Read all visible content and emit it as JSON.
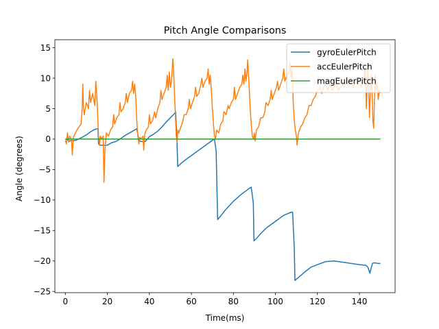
{
  "chart_data": {
    "type": "line",
    "title": "Pitch Angle Comparisons",
    "xlabel": "Time(ms)",
    "ylabel": "Angle (degrees)",
    "xlim": [
      -5,
      157
    ],
    "ylim": [
      -25.2,
      16.3
    ],
    "xticks": [
      0,
      20,
      40,
      60,
      80,
      100,
      120,
      140
    ],
    "yticks": [
      -25,
      -20,
      -15,
      -10,
      -5,
      0,
      5,
      10,
      15
    ],
    "grid": false,
    "legend_position": "upper right",
    "series": [
      {
        "name": "gyroEulerPitch",
        "color": "#1f77b4",
        "points": [
          [
            0,
            0.0
          ],
          [
            2,
            -0.3
          ],
          [
            5,
            -0.2
          ],
          [
            8,
            0.3
          ],
          [
            10,
            0.7
          ],
          [
            12,
            1.2
          ],
          [
            14,
            1.6
          ],
          [
            15.5,
            1.7
          ],
          [
            15.8,
            -0.8
          ],
          [
            16.5,
            -1.0
          ],
          [
            18,
            -1.0
          ],
          [
            20,
            -1.0
          ],
          [
            22,
            -0.6
          ],
          [
            24,
            -0.4
          ],
          [
            26,
            0.0
          ],
          [
            28,
            0.5
          ],
          [
            30,
            0.9
          ],
          [
            32,
            1.3
          ],
          [
            34,
            1.7
          ],
          [
            35,
            -0.2
          ],
          [
            36,
            -0.4
          ],
          [
            38,
            -0.4
          ],
          [
            40,
            0.4
          ],
          [
            42,
            0.8
          ],
          [
            44,
            1.3
          ],
          [
            46,
            2.0
          ],
          [
            48,
            2.8
          ],
          [
            50,
            3.5
          ],
          [
            52,
            4.2
          ],
          [
            52.5,
            4.5
          ],
          [
            53.2,
            -0.8
          ],
          [
            53.5,
            -4.5
          ],
          [
            55,
            -4.0
          ],
          [
            58,
            -3.2
          ],
          [
            62,
            -2.2
          ],
          [
            66,
            -1.2
          ],
          [
            70,
            -0.2
          ],
          [
            71,
            0.0
          ],
          [
            71.8,
            -2.0
          ],
          [
            72.5,
            -13.2
          ],
          [
            74,
            -12.6
          ],
          [
            76,
            -11.7
          ],
          [
            80,
            -10.2
          ],
          [
            84,
            -9.0
          ],
          [
            87.5,
            -8.1
          ],
          [
            88.5,
            -7.9
          ],
          [
            89.5,
            -10.5
          ],
          [
            89.8,
            -16.7
          ],
          [
            91,
            -16.3
          ],
          [
            93,
            -15.5
          ],
          [
            96,
            -14.5
          ],
          [
            100,
            -13.5
          ],
          [
            104,
            -12.5
          ],
          [
            107.5,
            -12.0
          ],
          [
            108.2,
            -12.0
          ],
          [
            109,
            -18.0
          ],
          [
            109.3,
            -23.2
          ],
          [
            111,
            -22.7
          ],
          [
            114,
            -21.8
          ],
          [
            117,
            -21.0
          ],
          [
            120,
            -20.6
          ],
          [
            124,
            -20.1
          ],
          [
            128,
            -20.0
          ],
          [
            132,
            -20.2
          ],
          [
            136,
            -20.4
          ],
          [
            140,
            -20.6
          ],
          [
            143,
            -20.7
          ],
          [
            144,
            -21.0
          ],
          [
            145,
            -22.0
          ],
          [
            145.5,
            -21.3
          ],
          [
            146.2,
            -20.4
          ],
          [
            147,
            -20.3
          ],
          [
            149,
            -20.4
          ],
          [
            150,
            -20.4
          ]
        ]
      },
      {
        "name": "accEulerPitch",
        "color": "#ff7f0e",
        "points": [
          [
            0,
            -0.2
          ],
          [
            0.5,
            -0.8
          ],
          [
            1,
            1.0
          ],
          [
            1.5,
            -0.5
          ],
          [
            2,
            0.5
          ],
          [
            2.5,
            0.2
          ],
          [
            3,
            -0.5
          ],
          [
            3.3,
            -2.6
          ],
          [
            3.8,
            0.3
          ],
          [
            4.5,
            0.8
          ],
          [
            5.5,
            1.5
          ],
          [
            6.5,
            2.0
          ],
          [
            7.5,
            2.5
          ],
          [
            8,
            5.0
          ],
          [
            8.3,
            9.0
          ],
          [
            8.6,
            5.5
          ],
          [
            9,
            4.0
          ],
          [
            10,
            6.0
          ],
          [
            11,
            5.0
          ],
          [
            11.5,
            8.0
          ],
          [
            12,
            6.0
          ],
          [
            13,
            7.5
          ],
          [
            14,
            5.5
          ],
          [
            14.5,
            9.5
          ],
          [
            15,
            7.0
          ],
          [
            15.5,
            3.0
          ],
          [
            15.8,
            0.5
          ],
          [
            16.2,
            -1.0
          ],
          [
            16.7,
            0.5
          ],
          [
            17.2,
            0.0
          ],
          [
            18,
            0.5
          ],
          [
            18.4,
            -7.1
          ],
          [
            18.8,
            -2.0
          ],
          [
            19.5,
            1.0
          ],
          [
            20.5,
            0.5
          ],
          [
            21.5,
            1.5
          ],
          [
            22.5,
            2.0
          ],
          [
            23,
            4.0
          ],
          [
            23.5,
            2.5
          ],
          [
            24.5,
            3.5
          ],
          [
            25.5,
            4.0
          ],
          [
            26,
            6.0
          ],
          [
            26.5,
            4.5
          ],
          [
            27.5,
            5.0
          ],
          [
            28.5,
            6.0
          ],
          [
            29,
            7.5
          ],
          [
            29.5,
            6.0
          ],
          [
            30.5,
            7.5
          ],
          [
            31.5,
            8.0
          ],
          [
            32,
            9.5
          ],
          [
            32.5,
            7.5
          ],
          [
            33,
            9.0
          ],
          [
            33.5,
            7.0
          ],
          [
            34,
            3.0
          ],
          [
            34.5,
            0.5
          ],
          [
            35,
            -0.8
          ],
          [
            35.5,
            0.3
          ],
          [
            36,
            0.0
          ],
          [
            37,
            0.5
          ],
          [
            37.3,
            -1.8
          ],
          [
            37.8,
            0.8
          ],
          [
            38.5,
            1.5
          ],
          [
            39.5,
            2.0
          ],
          [
            40,
            4.0
          ],
          [
            40.5,
            2.5
          ],
          [
            41.5,
            3.0
          ],
          [
            42.5,
            4.5
          ],
          [
            43,
            3.5
          ],
          [
            44,
            5.0
          ],
          [
            45,
            6.0
          ],
          [
            45.5,
            8.0
          ],
          [
            46,
            6.5
          ],
          [
            47,
            7.5
          ],
          [
            48,
            8.5
          ],
          [
            48.5,
            10.5
          ],
          [
            49,
            8.0
          ],
          [
            49.5,
            11.0
          ],
          [
            50,
            8.5
          ],
          [
            50.5,
            9.5
          ],
          [
            50.8,
            11.2
          ],
          [
            51.2,
            13.2
          ],
          [
            51.7,
            10.0
          ],
          [
            52,
            7.0
          ],
          [
            52.5,
            3.0
          ],
          [
            52.8,
            0.5
          ],
          [
            53.2,
            -0.5
          ],
          [
            53.6,
            1.5
          ],
          [
            54,
            1.0
          ],
          [
            55,
            2.0
          ],
          [
            56,
            3.0
          ],
          [
            56.5,
            4.0
          ],
          [
            57.5,
            4.0
          ],
          [
            58.5,
            5.0
          ],
          [
            59,
            6.5
          ],
          [
            59.5,
            5.0
          ],
          [
            60.5,
            6.0
          ],
          [
            61.5,
            7.0
          ],
          [
            62,
            8.5
          ],
          [
            62.5,
            7.0
          ],
          [
            63.5,
            7.5
          ],
          [
            64.5,
            9.0
          ],
          [
            65,
            10.0
          ],
          [
            65.5,
            8.5
          ],
          [
            66.5,
            9.5
          ],
          [
            67.5,
            10.0
          ],
          [
            68,
            11.5
          ],
          [
            68.5,
            9.0
          ],
          [
            69,
            10.5
          ],
          [
            69.5,
            8.0
          ],
          [
            70,
            5.0
          ],
          [
            70.5,
            2.5
          ],
          [
            71,
            0.5
          ],
          [
            71.5,
            0.0
          ],
          [
            72,
            1.5
          ],
          [
            73,
            1.0
          ],
          [
            74,
            2.5
          ],
          [
            75,
            3.0
          ],
          [
            75.5,
            4.5
          ],
          [
            76.5,
            4.0
          ],
          [
            77.5,
            5.5
          ],
          [
            78,
            5.0
          ],
          [
            79,
            6.0
          ],
          [
            80,
            6.5
          ],
          [
            80.5,
            8.5
          ],
          [
            81,
            6.5
          ],
          [
            82,
            7.5
          ],
          [
            83,
            8.5
          ],
          [
            84,
            9.0
          ],
          [
            84.5,
            10.5
          ],
          [
            85,
            9.0
          ],
          [
            85.5,
            11.5
          ],
          [
            86,
            9.5
          ],
          [
            86.5,
            11.0
          ],
          [
            86.8,
            13.0
          ],
          [
            87.2,
            10.5
          ],
          [
            87.6,
            8.0
          ],
          [
            88,
            5.0
          ],
          [
            88.5,
            2.5
          ],
          [
            89,
            0.5
          ],
          [
            89.5,
            0.0
          ],
          [
            90,
            1.0
          ],
          [
            90.3,
            -0.3
          ],
          [
            91,
            1.5
          ],
          [
            92,
            2.0
          ],
          [
            93,
            3.5
          ],
          [
            94,
            3.5
          ],
          [
            95,
            4.5
          ],
          [
            95.5,
            6.0
          ],
          [
            96.5,
            5.5
          ],
          [
            97.5,
            6.5
          ],
          [
            98,
            8.0
          ],
          [
            98.5,
            6.5
          ],
          [
            99.5,
            7.5
          ],
          [
            100.5,
            8.5
          ],
          [
            101,
            9.5
          ],
          [
            101.5,
            8.0
          ],
          [
            102.5,
            9.0
          ],
          [
            103.5,
            10.0
          ],
          [
            104,
            11.5
          ],
          [
            104.5,
            9.5
          ],
          [
            105.5,
            10.5
          ],
          [
            106.5,
            11.0
          ],
          [
            107,
            12.5
          ],
          [
            107.5,
            10.0
          ],
          [
            108,
            11.5
          ],
          [
            108.5,
            6.0
          ],
          [
            109,
            3.0
          ],
          [
            109.5,
            1.5
          ],
          [
            110,
            0.5
          ],
          [
            110.3,
            -1.0
          ],
          [
            111,
            1.0
          ],
          [
            112,
            2.0
          ],
          [
            113,
            2.5
          ],
          [
            114,
            3.5
          ],
          [
            115,
            4.0
          ],
          [
            116,
            5.5
          ],
          [
            117,
            5.5
          ],
          [
            118,
            6.5
          ],
          [
            119,
            7.0
          ],
          [
            120,
            8.0
          ],
          [
            121,
            8.5
          ],
          [
            122,
            7.5
          ],
          [
            123,
            8.5
          ],
          [
            124,
            9.0
          ],
          [
            125,
            8.0
          ],
          [
            126,
            9.0
          ],
          [
            127,
            8.0
          ],
          [
            128,
            8.5
          ],
          [
            129,
            9.5
          ],
          [
            130,
            8.0
          ],
          [
            131,
            8.5
          ],
          [
            132,
            9.0
          ],
          [
            133,
            8.5
          ],
          [
            134,
            10.0
          ],
          [
            135,
            9.0
          ],
          [
            136,
            10.0
          ],
          [
            137,
            8.5
          ],
          [
            138,
            9.5
          ],
          [
            139,
            9.0
          ],
          [
            140,
            9.5
          ],
          [
            141,
            8.5
          ],
          [
            142,
            9.5
          ],
          [
            142.6,
            11.5
          ],
          [
            143,
            10.0
          ],
          [
            143.3,
            5.0
          ],
          [
            143.7,
            8.5
          ],
          [
            144,
            12.5
          ],
          [
            144.4,
            8.5
          ],
          [
            144.8,
            3.5
          ],
          [
            145.2,
            7.5
          ],
          [
            145.6,
            10.5
          ],
          [
            146,
            8.0
          ],
          [
            146.4,
            3.0
          ],
          [
            146.8,
            1.8
          ],
          [
            147.2,
            7.0
          ],
          [
            147.6,
            10.5
          ],
          [
            148,
            8.0
          ],
          [
            148.5,
            9.0
          ],
          [
            149,
            6.5
          ],
          [
            149.5,
            8.0
          ],
          [
            150,
            7.5
          ]
        ]
      },
      {
        "name": "magEulerPitch",
        "color": "#2ca02c",
        "points": [
          [
            0,
            0
          ],
          [
            150,
            0
          ]
        ]
      }
    ]
  }
}
